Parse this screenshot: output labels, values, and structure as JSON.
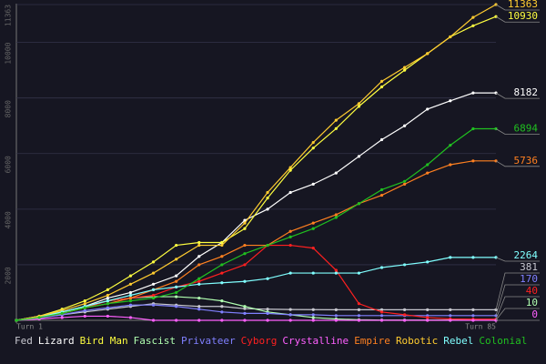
{
  "chart_data": {
    "type": "line",
    "x": [
      1,
      5,
      9,
      13,
      17,
      21,
      25,
      29,
      33,
      37,
      41,
      45,
      49,
      53,
      57,
      61,
      65,
      69,
      73,
      77,
      81,
      85
    ],
    "xlim": [
      1,
      85
    ],
    "xticks": [
      {
        "value": 1,
        "label": "Turn 1"
      },
      {
        "value": 85,
        "label": "Turn 85"
      }
    ],
    "ylim": [
      0,
      11363
    ],
    "yticks": [
      2000,
      4000,
      6000,
      8000,
      10000,
      11363
    ],
    "grid": true,
    "series": [
      {
        "name": "Fed",
        "color": "#c8c8d0",
        "values": [
          0,
          100,
          200,
          300,
          400,
          500,
          600,
          550,
          500,
          500,
          420,
          400,
          390,
          385,
          381,
          381,
          381,
          381,
          381,
          381,
          381,
          381
        ]
      },
      {
        "name": "Lizard",
        "color": "#ffffff",
        "values": [
          0,
          100,
          300,
          500,
          800,
          1000,
          1300,
          1600,
          2300,
          2800,
          3600,
          4000,
          4600,
          4900,
          5300,
          5900,
          6500,
          7000,
          7600,
          7900,
          8182,
          8182
        ]
      },
      {
        "name": "Bird Man",
        "color": "#ffff40",
        "values": [
          0,
          150,
          400,
          700,
          1100,
          1600,
          2100,
          2700,
          2800,
          2800,
          3300,
          4400,
          5400,
          6200,
          6900,
          7700,
          8400,
          9000,
          9600,
          10200,
          10600,
          10930
        ]
      },
      {
        "name": "Fascist",
        "color": "#b0ffb0",
        "values": [
          0,
          150,
          300,
          500,
          700,
          800,
          850,
          850,
          800,
          700,
          500,
          300,
          200,
          100,
          50,
          20,
          10,
          10,
          10,
          10,
          10,
          10
        ]
      },
      {
        "name": "Privateer",
        "color": "#8080ff",
        "values": [
          0,
          80,
          200,
          350,
          450,
          550,
          550,
          500,
          400,
          300,
          250,
          250,
          200,
          200,
          170,
          170,
          170,
          170,
          170,
          170,
          170,
          170
        ]
      },
      {
        "name": "Cyborg",
        "color": "#ff2020",
        "values": [
          0,
          100,
          250,
          450,
          700,
          800,
          900,
          1200,
          1400,
          1700,
          2000,
          2700,
          2700,
          2600,
          1800,
          600,
          300,
          200,
          100,
          50,
          40,
          40
        ]
      },
      {
        "name": "Crystalline",
        "color": "#ff60ff",
        "values": [
          0,
          50,
          100,
          150,
          150,
          100,
          0,
          0,
          0,
          0,
          0,
          0,
          0,
          0,
          0,
          0,
          0,
          0,
          0,
          0,
          0,
          0
        ]
      },
      {
        "name": "Empire",
        "color": "#ff8020",
        "values": [
          0,
          100,
          250,
          450,
          600,
          800,
          1100,
          1400,
          2000,
          2300,
          2700,
          2700,
          3200,
          3500,
          3800,
          4200,
          4500,
          4900,
          5300,
          5600,
          5736,
          5736
        ]
      },
      {
        "name": "Robotic",
        "color": "#ffcc30",
        "values": [
          0,
          150,
          350,
          600,
          900,
          1300,
          1700,
          2200,
          2700,
          2700,
          3500,
          4600,
          5500,
          6400,
          7200,
          7800,
          8600,
          9100,
          9600,
          10200,
          10900,
          11363
        ]
      },
      {
        "name": "Rebel",
        "color": "#80ffff",
        "values": [
          0,
          100,
          300,
          500,
          700,
          900,
          1100,
          1200,
          1300,
          1350,
          1400,
          1500,
          1700,
          1700,
          1700,
          1700,
          1900,
          2000,
          2100,
          2264,
          2264,
          2264
        ]
      },
      {
        "name": "Colonial",
        "color": "#20c020",
        "values": [
          0,
          100,
          250,
          450,
          600,
          700,
          800,
          1000,
          1500,
          2000,
          2400,
          2700,
          3000,
          3300,
          3700,
          4200,
          4700,
          5000,
          5600,
          6300,
          6894,
          6894
        ]
      }
    ]
  }
}
